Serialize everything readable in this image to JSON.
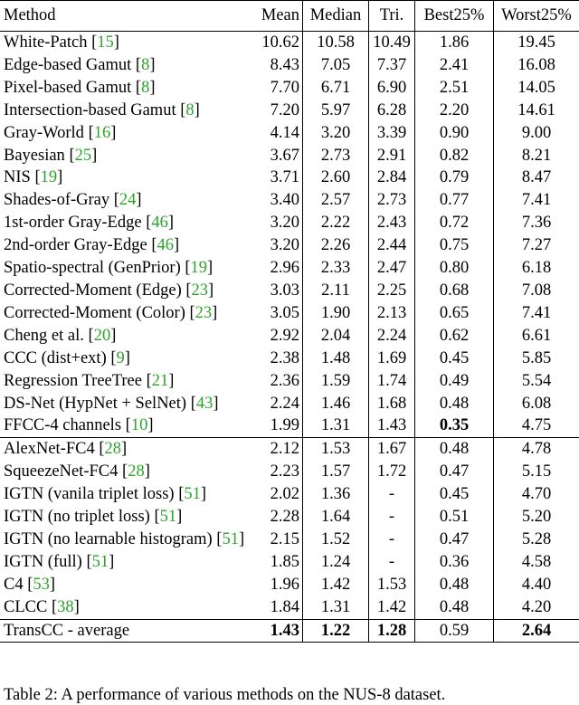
{
  "headers": {
    "method": "Method",
    "mean": "Mean",
    "median": "Median",
    "tri": "Tri.",
    "best25": "Best25%",
    "worst25": "Worst25%"
  },
  "groups": [
    [
      {
        "name": "White-Patch",
        "cite": "15",
        "mean": "10.62",
        "median": "10.58",
        "tri": "10.49",
        "best": "1.86",
        "worst": "19.45"
      },
      {
        "name": "Edge-based Gamut",
        "cite": "8",
        "mean": "8.43",
        "median": "7.05",
        "tri": "7.37",
        "best": "2.41",
        "worst": "16.08"
      },
      {
        "name": "Pixel-based Gamut",
        "cite": "8",
        "mean": "7.70",
        "median": "6.71",
        "tri": "6.90",
        "best": "2.51",
        "worst": "14.05"
      },
      {
        "name": "Intersection-based Gamut",
        "cite": "8",
        "mean": "7.20",
        "median": "5.97",
        "tri": "6.28",
        "best": "2.20",
        "worst": "14.61"
      },
      {
        "name": "Gray-World",
        "cite": "16",
        "mean": "4.14",
        "median": "3.20",
        "tri": "3.39",
        "best": "0.90",
        "worst": "9.00"
      },
      {
        "name": "Bayesian",
        "cite": "25",
        "mean": "3.67",
        "median": "2.73",
        "tri": "2.91",
        "best": "0.82",
        "worst": "8.21"
      },
      {
        "name": "NIS",
        "cite": "19",
        "mean": "3.71",
        "median": "2.60",
        "tri": "2.84",
        "best": "0.79",
        "worst": "8.47"
      },
      {
        "name": "Shades-of-Gray",
        "cite": "24",
        "mean": "3.40",
        "median": "2.57",
        "tri": "2.73",
        "best": "0.77",
        "worst": "7.41"
      },
      {
        "name": "1st-order Gray-Edge",
        "cite": "46",
        "mean": "3.20",
        "median": "2.22",
        "tri": "2.43",
        "best": "0.72",
        "worst": "7.36"
      },
      {
        "name": "2nd-order Gray-Edge",
        "cite": "46",
        "mean": "3.20",
        "median": "2.26",
        "tri": "2.44",
        "best": "0.75",
        "worst": "7.27"
      },
      {
        "name": "Spatio-spectral (GenPrior)",
        "cite": "19",
        "mean": "2.96",
        "median": "2.33",
        "tri": "2.47",
        "best": "0.80",
        "worst": "6.18"
      },
      {
        "name": "Corrected-Moment (Edge)",
        "cite": "23",
        "mean": "3.03",
        "median": "2.11",
        "tri": "2.25",
        "best": "0.68",
        "worst": "7.08"
      },
      {
        "name": "Corrected-Moment (Color)",
        "cite": "23",
        "mean": "3.05",
        "median": "1.90",
        "tri": "2.13",
        "best": "0.65",
        "worst": "7.41"
      },
      {
        "name": "Cheng et al.",
        "cite": "20",
        "mean": "2.92",
        "median": "2.04",
        "tri": "2.24",
        "best": "0.62",
        "worst": "6.61"
      },
      {
        "name": "CCC (dist+ext)",
        "cite": "9",
        "mean": "2.38",
        "median": "1.48",
        "tri": "1.69",
        "best": "0.45",
        "worst": "5.85"
      },
      {
        "name": "Regression TreeTree",
        "cite": "21",
        "mean": "2.36",
        "median": "1.59",
        "tri": "1.74",
        "best": "0.49",
        "worst": "5.54"
      },
      {
        "name": "DS-Net (HypNet + SelNet)",
        "cite": "43",
        "mean": "2.24",
        "median": "1.46",
        "tri": "1.68",
        "best": "0.48",
        "worst": "6.08"
      },
      {
        "name": "FFCC-4 channels",
        "cite": "10",
        "mean": "1.99",
        "median": "1.31",
        "tri": "1.43",
        "best": "0.35",
        "worst": "4.75",
        "bold": [
          "best"
        ]
      }
    ],
    [
      {
        "name": "AlexNet-FC4",
        "cite": "28",
        "mean": "2.12",
        "median": "1.53",
        "tri": "1.67",
        "best": "0.48",
        "worst": "4.78"
      },
      {
        "name": "SqueezeNet-FC4",
        "cite": "28",
        "mean": "2.23",
        "median": "1.57",
        "tri": "1.72",
        "best": "0.47",
        "worst": "5.15"
      },
      {
        "name": "IGTN (vanila triplet loss)",
        "cite": "51",
        "mean": "2.02",
        "median": "1.36",
        "tri": "-",
        "best": "0.45",
        "worst": "4.70"
      },
      {
        "name": "IGTN (no triplet loss)",
        "cite": "51",
        "mean": "2.28",
        "median": "1.64",
        "tri": "-",
        "best": "0.51",
        "worst": "5.20"
      },
      {
        "name": "IGTN (no learnable histogram)",
        "cite": "51",
        "mean": "2.15",
        "median": "1.52",
        "tri": "-",
        "best": "0.47",
        "worst": "5.28"
      },
      {
        "name": "IGTN (full)",
        "cite": "51",
        "mean": "1.85",
        "median": "1.24",
        "tri": "-",
        "best": "0.36",
        "worst": "4.58"
      },
      {
        "name": "C4",
        "cite": "53",
        "mean": "1.96",
        "median": "1.42",
        "tri": "1.53",
        "best": "0.48",
        "worst": "4.40"
      },
      {
        "name": "CLCC",
        "cite": "38",
        "mean": "1.84",
        "median": "1.31",
        "tri": "1.42",
        "best": "0.48",
        "worst": "4.20"
      }
    ],
    [
      {
        "name": "TransCC - average",
        "cite": "",
        "mean": "1.43",
        "median": "1.22",
        "tri": "1.28",
        "best": "0.59",
        "worst": "2.64",
        "bold": [
          "mean",
          "median",
          "tri",
          "worst"
        ]
      }
    ]
  ],
  "caption": "Table 2: A performance of various methods on the NUS-8 dataset."
}
